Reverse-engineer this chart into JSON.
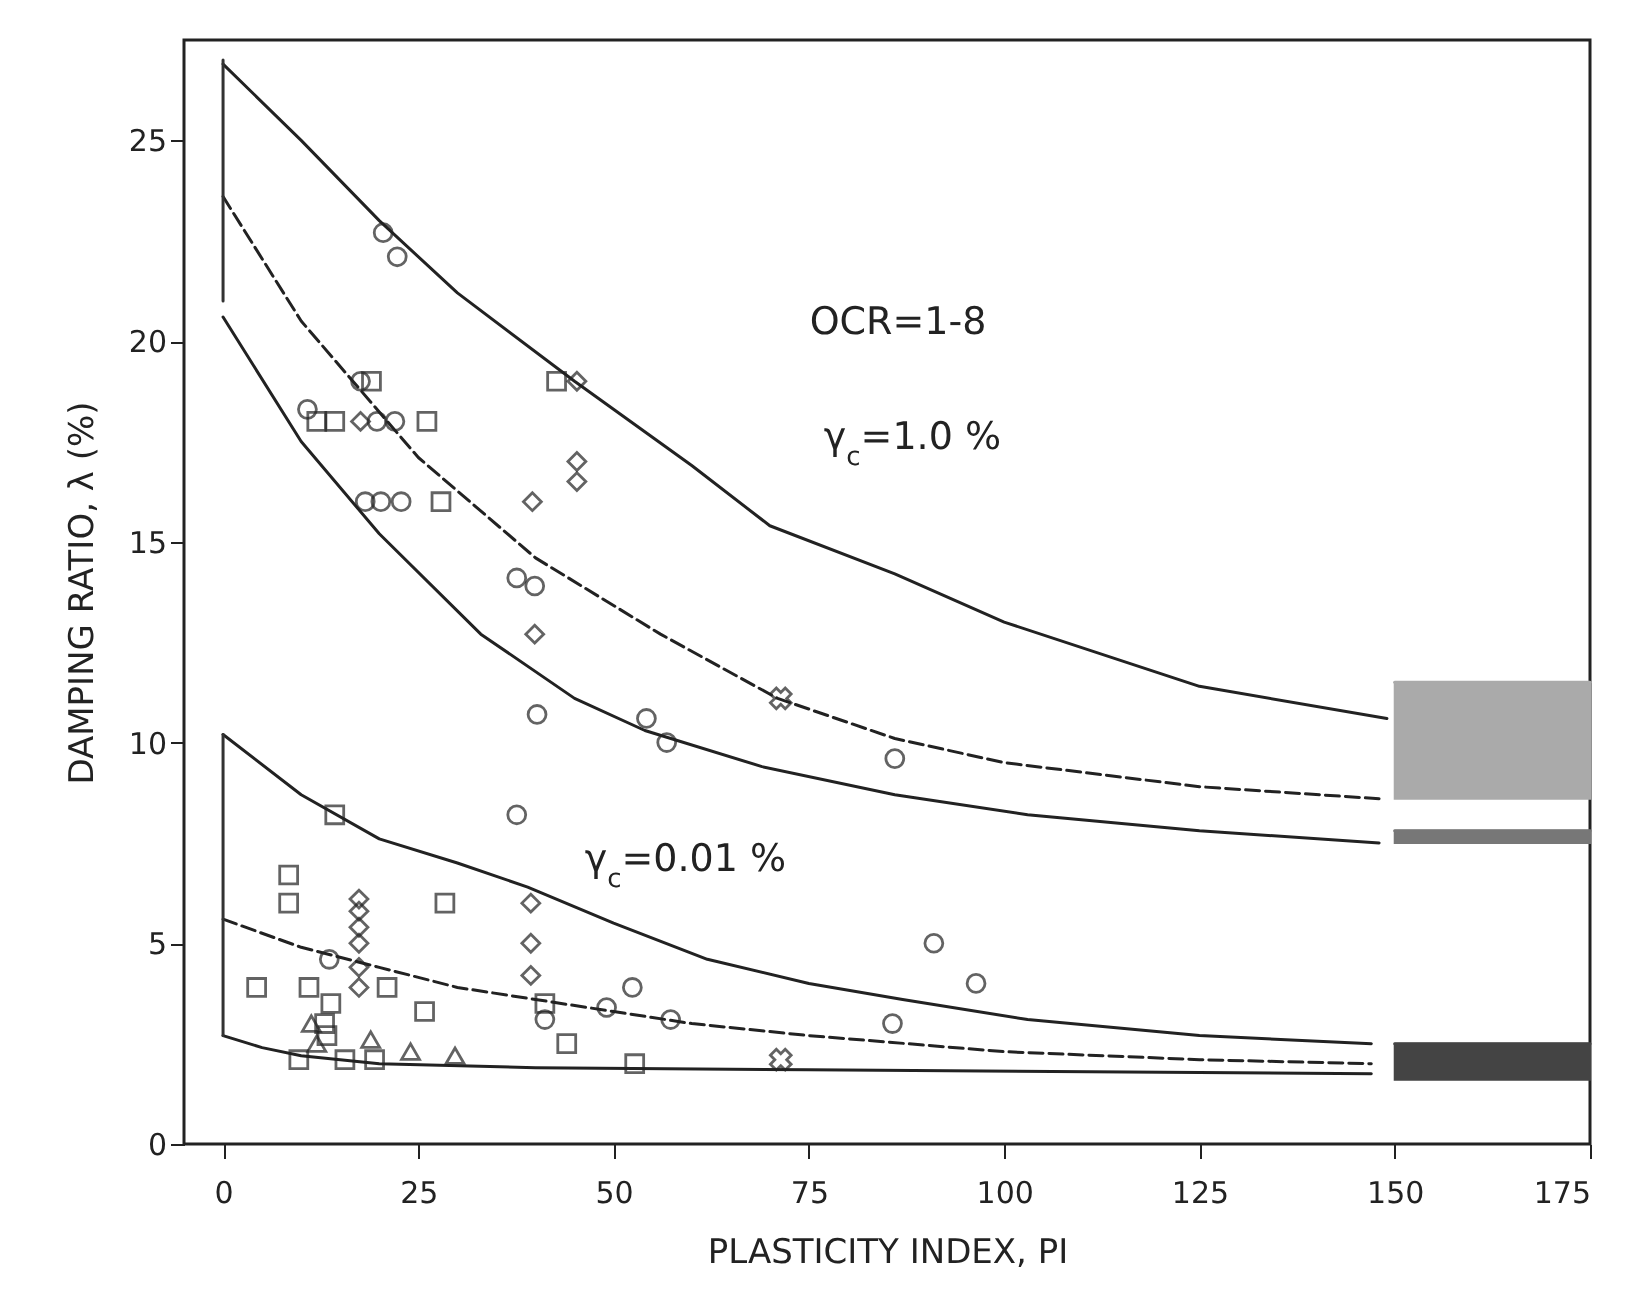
{
  "chart_data": {
    "type": "scatter",
    "xlabel": "PLASTICITY INDEX, PI",
    "ylabel": "DAMPING RATIO, λ (%)",
    "xlim": [
      -5,
      175
    ],
    "ylim": [
      0,
      27.5
    ],
    "xticks": [
      0,
      25,
      50,
      75,
      100,
      125,
      150,
      175
    ],
    "yticks": [
      0,
      5,
      10,
      15,
      20,
      25
    ],
    "grid": false,
    "annotations": [
      "OCR=1-8",
      "γ$_{c}$=1.0 %",
      "γ$_{c}$=0.01 %"
    ],
    "series": [
      {
        "type": "line",
        "color": "#222222",
        "line_style": "solid",
        "x": [
          0,
          10,
          20,
          30,
          45,
          60,
          70,
          86,
          100,
          125,
          149
        ],
        "values": [
          26.9,
          25.0,
          23.0,
          21.2,
          19.0,
          16.9,
          15.4,
          14.2,
          13.0,
          11.4,
          10.6
        ]
      },
      {
        "type": "line",
        "color": "#222222",
        "line_style": "dashed",
        "x": [
          0,
          10,
          25,
          40,
          56,
          71,
          86,
          100,
          125,
          148
        ],
        "values": [
          23.6,
          20.5,
          17.1,
          14.6,
          12.7,
          11.1,
          10.1,
          9.5,
          8.9,
          8.6
        ]
      },
      {
        "type": "line",
        "color": "#222222",
        "line_style": "solid",
        "x": [
          0,
          10,
          20,
          33,
          45,
          54,
          69,
          86,
          103,
          125,
          148
        ],
        "values": [
          20.6,
          17.5,
          15.2,
          12.7,
          11.1,
          10.3,
          9.4,
          8.7,
          8.2,
          7.8,
          7.5
        ]
      },
      {
        "type": "line",
        "color": "#222222",
        "line_style": "solid",
        "x": [
          0,
          10,
          20,
          30,
          39,
          50,
          62,
          75,
          87,
          103,
          125,
          147
        ],
        "values": [
          10.2,
          8.7,
          7.6,
          7.0,
          6.4,
          5.5,
          4.6,
          4.0,
          3.6,
          3.1,
          2.7,
          2.5
        ]
      },
      {
        "type": "line",
        "color": "#222222",
        "line_style": "dashed",
        "x": [
          0,
          10,
          20,
          30,
          40,
          50,
          60,
          75,
          100,
          125,
          147
        ],
        "values": [
          5.6,
          4.9,
          4.4,
          3.9,
          3.6,
          3.3,
          3.0,
          2.7,
          2.3,
          2.1,
          2.0
        ]
      },
      {
        "type": "line",
        "color": "#222222",
        "line_style": "solid",
        "x": [
          0,
          5,
          10,
          20,
          40,
          75,
          147
        ],
        "values": [
          2.7,
          2.4,
          2.2,
          2.0,
          1.9,
          1.85,
          1.75
        ]
      },
      {
        "type": "line",
        "color": "#333333",
        "line_style": "solid",
        "x": [
          0,
          0
        ],
        "values": [
          21.0,
          27.0
        ]
      },
      {
        "type": "line",
        "color": "#333333",
        "line_style": "solid",
        "x": [
          0,
          0
        ],
        "values": [
          2.7,
          10.2
        ]
      },
      {
        "type": "line",
        "color": "#aaaaaa",
        "line_style": "solid",
        "x": [
          150,
          175
        ],
        "values": [
          11.5,
          11.5
        ],
        "lower": [
          8.6,
          8.6
        ],
        "upper": [
          11.5,
          11.5
        ]
      },
      {
        "type": "line",
        "color": "#777777",
        "line_style": "solid",
        "x": [
          150,
          175
        ],
        "values": [
          7.8,
          7.8
        ],
        "lower": [
          7.5,
          7.5
        ],
        "upper": [
          7.8,
          7.8
        ]
      },
      {
        "type": "line",
        "color": "#444444",
        "line_style": "solid",
        "x": [
          150,
          175
        ],
        "values": [
          2.5,
          2.5
        ],
        "lower": [
          1.6,
          1.6
        ],
        "upper": [
          2.5,
          2.5
        ]
      },
      {
        "marker": "circle",
        "color": "#222222",
        "x": [
          20.5,
          22.3,
          10.8,
          17.6,
          19.7,
          22,
          18.2,
          20.2,
          22.8,
          37.6,
          39.9,
          40.2,
          54.2,
          56.8,
          86,
          37.6,
          13.6,
          52.4,
          49.1,
          41.2,
          57.3,
          85.7,
          91,
          96.4
        ],
        "values": [
          22.7,
          22.1,
          18.3,
          19.0,
          18.0,
          18.0,
          16.0,
          16.0,
          16.0,
          14.1,
          13.9,
          10.7,
          10.6,
          10.0,
          9.6,
          8.2,
          4.6,
          3.9,
          3.4,
          3.1,
          3.1,
          3.0,
          5.0,
          4.0
        ]
      },
      {
        "marker": "square",
        "color": "#222222",
        "x": [
          19,
          12,
          14.3,
          26.1,
          27.9,
          42.7,
          14.3,
          8.4,
          8.4,
          28.4,
          4.3,
          11,
          21,
          13.8,
          25.8,
          41.2,
          44,
          52.7,
          9.7,
          15.6,
          19.4,
          13,
          13.3
        ],
        "values": [
          19.0,
          18.0,
          18.0,
          18.0,
          16.0,
          19.0,
          8.2,
          6.7,
          6.0,
          6.0,
          3.9,
          3.9,
          3.9,
          3.5,
          3.3,
          3.5,
          2.5,
          2.0,
          2.1,
          2.1,
          2.1,
          3.0,
          2.7
        ]
      },
      {
        "marker": "diamond",
        "color": "#222222",
        "x": [
          17.6,
          39.6,
          39.9,
          17.4,
          17.4,
          17.4,
          17.4,
          17.4,
          17.4,
          39.4,
          39.4,
          39.4,
          45.3,
          45.3,
          45.3
        ],
        "values": [
          18.0,
          16.0,
          12.7,
          6.1,
          5.8,
          5.4,
          5.0,
          4.4,
          3.9,
          6.0,
          5.0,
          4.2,
          19.0,
          17.0,
          16.5
        ]
      },
      {
        "marker": "triangle",
        "color": "#222222",
        "x": [
          11.3,
          12,
          18.9,
          24,
          29.7
        ],
        "values": [
          3.0,
          2.5,
          2.6,
          2.3,
          2.2
        ]
      },
      {
        "marker": "cross",
        "color": "#222222",
        "x": [
          71.4,
          71.4
        ],
        "values": [
          11.1,
          2.1
        ]
      }
    ]
  }
}
